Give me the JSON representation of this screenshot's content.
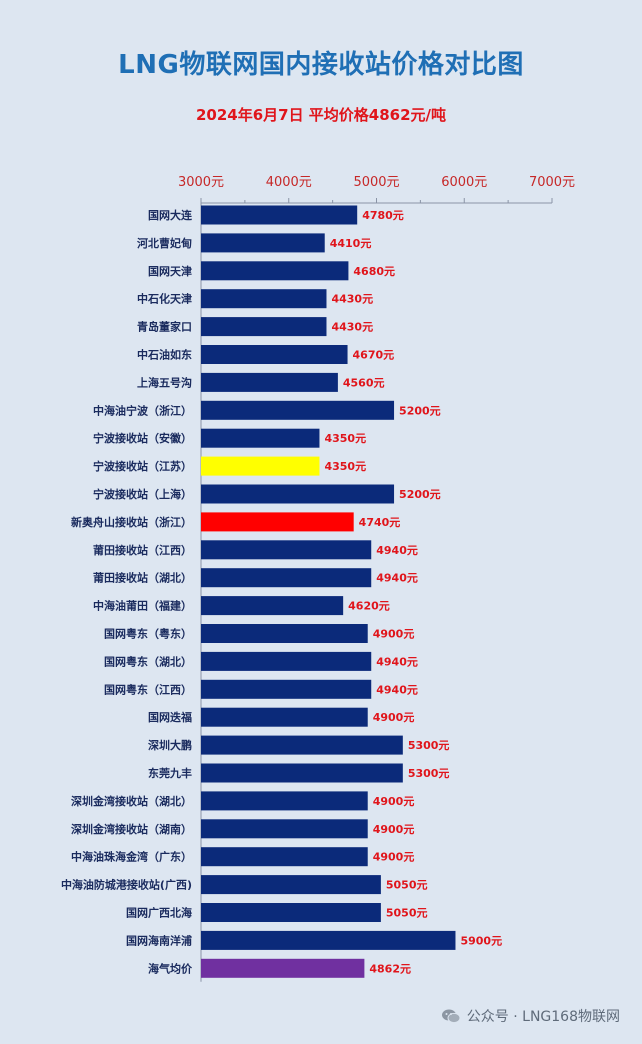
{
  "title": "LNG物联网国内接收站价格对比图",
  "subtitle": "2024年6月7日 平均价格4862元/吨",
  "footer": {
    "text": "公众号 · LNG168物联网",
    "icon": "wechat-icon"
  },
  "colors": {
    "bar": "#0b2a7a",
    "highlight_yellow": "#ffff00",
    "highlight_red": "#ff0000",
    "average": "#7030a0",
    "label_red": "#e0151b",
    "background": "#dde6f1"
  },
  "chart_data": {
    "type": "bar",
    "orientation": "horizontal",
    "title": "LNG物联网国内接收站价格对比图",
    "subtitle": "2024年6月7日 平均价格4862元/吨",
    "xlim": [
      3000,
      7000
    ],
    "ticks": [
      3000,
      4000,
      5000,
      6000,
      7000
    ],
    "tick_labels": [
      "3000元",
      "4000元",
      "5000元",
      "6000元",
      "7000元"
    ],
    "axis_position": "top",
    "categories": [
      "国网大连",
      "河北曹妃甸",
      "国网天津",
      "中石化天津",
      "青岛董家口",
      "中石油如东",
      "上海五号沟",
      "中海油宁波（浙江）",
      "宁波接收站（安徽）",
      "宁波接收站（江苏）",
      "宁波接收站（上海）",
      "新奥舟山接收站（浙江）",
      "莆田接收站（江西）",
      "莆田接收站（湖北）",
      "中海油莆田（福建）",
      "国网粤东（粤东）",
      "国网粤东（湖北）",
      "国网粤东（江西）",
      "国网迭福",
      "深圳大鹏",
      "东莞九丰",
      "深圳金湾接收站（湖北）",
      "深圳金湾接收站（湖南）",
      "中海油珠海金湾（广东）",
      "中海油防城港接收站(广西)",
      "国网广西北海",
      "国网海南洋浦",
      "海气均价"
    ],
    "values": [
      4780,
      4410,
      4680,
      4430,
      4430,
      4670,
      4560,
      5200,
      4350,
      4350,
      5200,
      4740,
      4940,
      4940,
      4620,
      4900,
      4940,
      4940,
      4900,
      5300,
      5300,
      4900,
      4900,
      4900,
      5050,
      5050,
      5900,
      4862
    ],
    "value_labels": [
      "4780元",
      "4410元",
      "4680元",
      "4430元",
      "4430元",
      "4670元",
      "4560元",
      "5200元",
      "4350元",
      "4350元",
      "5200元",
      "4740元",
      "4940元",
      "4940元",
      "4620元",
      "4900元",
      "4940元",
      "4940元",
      "4900元",
      "5300元",
      "5300元",
      "4900元",
      "4900元",
      "4900元",
      "5050元",
      "5050元",
      "5900元",
      "4862元"
    ],
    "bar_colors": [
      "#0b2a7a",
      "#0b2a7a",
      "#0b2a7a",
      "#0b2a7a",
      "#0b2a7a",
      "#0b2a7a",
      "#0b2a7a",
      "#0b2a7a",
      "#0b2a7a",
      "#ffff00",
      "#0b2a7a",
      "#ff0000",
      "#0b2a7a",
      "#0b2a7a",
      "#0b2a7a",
      "#0b2a7a",
      "#0b2a7a",
      "#0b2a7a",
      "#0b2a7a",
      "#0b2a7a",
      "#0b2a7a",
      "#0b2a7a",
      "#0b2a7a",
      "#0b2a7a",
      "#0b2a7a",
      "#0b2a7a",
      "#0b2a7a",
      "#7030a0"
    ],
    "grid": false
  }
}
